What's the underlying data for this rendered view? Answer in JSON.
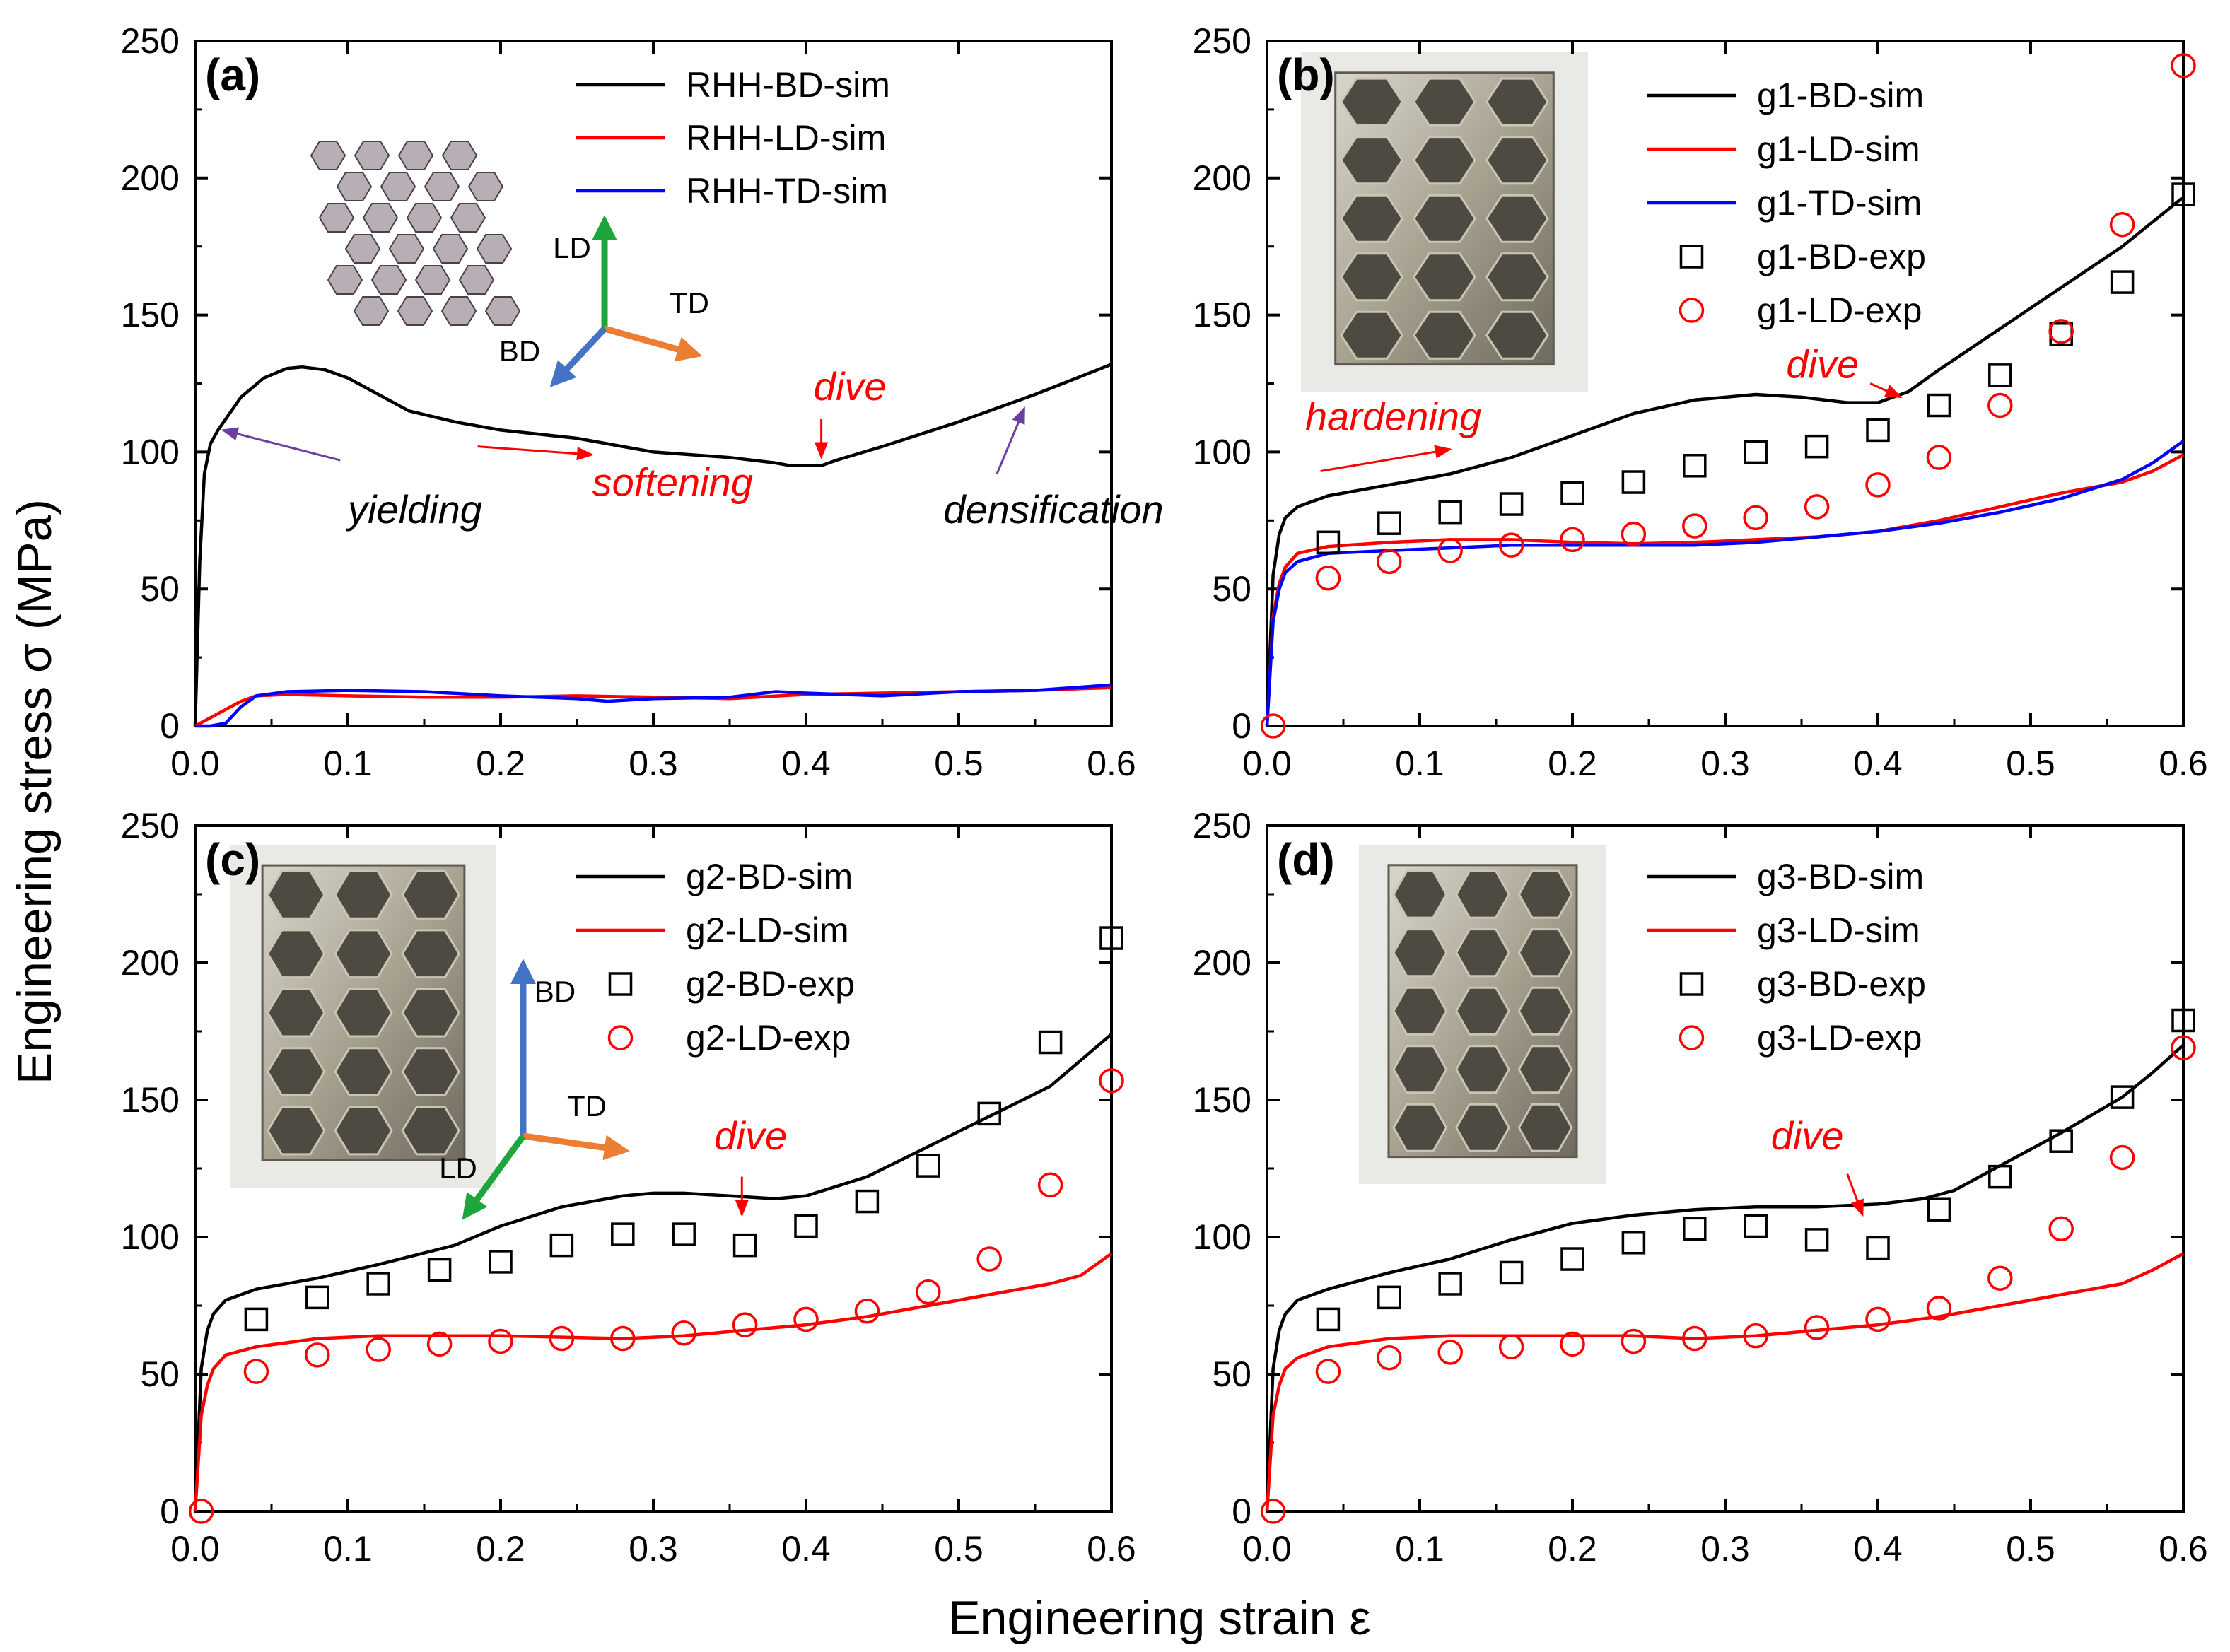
{
  "figure": {
    "ylabel": "Engineering stress σ (MPa)",
    "xlabel": "Engineering strain ε"
  },
  "chart_data": [
    {
      "type": "line",
      "panel": "(a)",
      "xlim": [
        0,
        0.6
      ],
      "ylim": [
        0,
        250
      ],
      "xticks": [
        "0.0",
        "0.1",
        "0.2",
        "0.3",
        "0.4",
        "0.5",
        "0.6"
      ],
      "yticks": [
        "0",
        "50",
        "100",
        "150",
        "200",
        "250"
      ],
      "legend_position": "top-right",
      "inset": {
        "kind": "honeycomb-sketch",
        "labels": {
          "ld": "LD",
          "td": "TD",
          "bd": "BD"
        }
      },
      "series": [
        {
          "name": "RHH-BD-sim",
          "style": "line",
          "color": "#000000",
          "x": [
            0,
            0.003,
            0.006,
            0.01,
            0.015,
            0.02,
            0.03,
            0.045,
            0.06,
            0.07,
            0.085,
            0.1,
            0.12,
            0.14,
            0.17,
            0.2,
            0.25,
            0.3,
            0.35,
            0.38,
            0.39,
            0.4,
            0.41,
            0.42,
            0.45,
            0.5,
            0.55,
            0.6
          ],
          "y": [
            0,
            60,
            92,
            103,
            108,
            112,
            120,
            127,
            130.5,
            131,
            130,
            127,
            121,
            115,
            111,
            108,
            105,
            100,
            98,
            96,
            95,
            95,
            95,
            97,
            102,
            111,
            121,
            132
          ]
        },
        {
          "name": "RHH-LD-sim",
          "style": "line",
          "color": "#ff0000",
          "x": [
            0,
            0.01,
            0.02,
            0.03,
            0.04,
            0.06,
            0.1,
            0.15,
            0.2,
            0.25,
            0.3,
            0.35,
            0.4,
            0.45,
            0.5,
            0.55,
            0.6
          ],
          "y": [
            0,
            3,
            6,
            9,
            11,
            11.5,
            11,
            10.5,
            10.5,
            11,
            10.5,
            10,
            11.5,
            12,
            12.5,
            13,
            14
          ]
        },
        {
          "name": "RHH-TD-sim",
          "style": "line",
          "color": "#0000ff",
          "x": [
            0,
            0.01,
            0.02,
            0.03,
            0.04,
            0.06,
            0.1,
            0.15,
            0.2,
            0.25,
            0.27,
            0.3,
            0.35,
            0.38,
            0.4,
            0.45,
            0.5,
            0.55,
            0.6
          ],
          "y": [
            0,
            0,
            1,
            7,
            11,
            12.5,
            13,
            12.5,
            11,
            10,
            9,
            10,
            10.5,
            12.5,
            12,
            11,
            12.5,
            13,
            15
          ]
        }
      ],
      "annotations": [
        {
          "text": "yielding",
          "color": "#000000",
          "x": 0.1,
          "y": 74
        },
        {
          "text": "softening",
          "color": "#ff0000",
          "x": 0.26,
          "y": 84
        },
        {
          "text": "dive",
          "color": "#ff0000",
          "x": 0.405,
          "y": 119
        },
        {
          "text": "densification",
          "color": "#000000",
          "x": 0.49,
          "y": 74
        }
      ]
    },
    {
      "type": "line",
      "panel": "(b)",
      "xlim": [
        0,
        0.6
      ],
      "ylim": [
        0,
        250
      ],
      "xticks": [
        "0.0",
        "0.1",
        "0.2",
        "0.3",
        "0.4",
        "0.5",
        "0.6"
      ],
      "yticks": [
        "0",
        "50",
        "100",
        "150",
        "200",
        "250"
      ],
      "legend_position": "top-right",
      "inset": {
        "kind": "photo"
      },
      "series": [
        {
          "name": "g1-BD-sim",
          "style": "line",
          "color": "#000000",
          "x": [
            0,
            0.004,
            0.008,
            0.012,
            0.02,
            0.04,
            0.08,
            0.12,
            0.16,
            0.2,
            0.24,
            0.28,
            0.32,
            0.35,
            0.38,
            0.4,
            0.42,
            0.44,
            0.48,
            0.52,
            0.56,
            0.6
          ],
          "y": [
            0,
            55,
            70,
            76,
            80,
            84,
            88,
            92,
            98,
            106,
            114,
            119,
            121,
            120,
            118,
            118,
            122,
            130,
            145,
            160,
            175,
            193
          ]
        },
        {
          "name": "g1-LD-sim",
          "style": "line",
          "color": "#ff0000",
          "x": [
            0,
            0.004,
            0.008,
            0.012,
            0.02,
            0.04,
            0.08,
            0.12,
            0.16,
            0.2,
            0.24,
            0.28,
            0.32,
            0.36,
            0.4,
            0.44,
            0.48,
            0.52,
            0.56,
            0.58,
            0.6
          ],
          "y": [
            0,
            40,
            52,
            58,
            63,
            65.5,
            67,
            68,
            68,
            67,
            66.5,
            67,
            68,
            69,
            71,
            75,
            80,
            85,
            89,
            93,
            99
          ]
        },
        {
          "name": "g1-TD-sim",
          "style": "line",
          "color": "#0000ff",
          "x": [
            0,
            0.004,
            0.008,
            0.012,
            0.02,
            0.04,
            0.08,
            0.12,
            0.16,
            0.2,
            0.24,
            0.28,
            0.32,
            0.36,
            0.4,
            0.44,
            0.48,
            0.52,
            0.56,
            0.58,
            0.6
          ],
          "y": [
            0,
            38,
            50,
            56,
            60,
            63,
            64,
            65,
            66,
            66,
            66,
            66,
            67,
            69,
            71,
            74,
            78,
            83,
            90,
            96,
            104
          ]
        },
        {
          "name": "g1-BD-exp",
          "style": "square",
          "color": "#000000",
          "x": [
            0.04,
            0.08,
            0.12,
            0.16,
            0.2,
            0.24,
            0.28,
            0.32,
            0.36,
            0.4,
            0.44,
            0.48,
            0.52,
            0.56,
            0.6
          ],
          "y": [
            67,
            74,
            78,
            81,
            85,
            89,
            95,
            100,
            102,
            108,
            117,
            128,
            143,
            162,
            194
          ]
        },
        {
          "name": "g1-LD-exp",
          "style": "circle",
          "color": "#ff0000",
          "x": [
            0.004,
            0.04,
            0.08,
            0.12,
            0.16,
            0.2,
            0.24,
            0.28,
            0.32,
            0.36,
            0.4,
            0.44,
            0.48,
            0.52,
            0.56,
            0.6
          ],
          "y": [
            0,
            54,
            60,
            64,
            66,
            68,
            70,
            73,
            76,
            80,
            88,
            98,
            117,
            144,
            183,
            241
          ]
        }
      ],
      "annotations": [
        {
          "text": "hardening",
          "color": "#ff0000",
          "x": 0.025,
          "y": 108
        },
        {
          "text": "dive",
          "color": "#ff0000",
          "x": 0.34,
          "y": 127
        }
      ]
    },
    {
      "type": "line",
      "panel": "(c)",
      "xlim": [
        0,
        0.6
      ],
      "ylim": [
        0,
        250
      ],
      "xticks": [
        "0.0",
        "0.1",
        "0.2",
        "0.3",
        "0.4",
        "0.5",
        "0.6"
      ],
      "yticks": [
        "0",
        "50",
        "100",
        "150",
        "200",
        "250"
      ],
      "legend_position": "top-right",
      "inset": {
        "kind": "photo",
        "labels": {
          "bd": "BD",
          "td": "TD",
          "ld": "LD"
        }
      },
      "series": [
        {
          "name": "g2-BD-sim",
          "style": "line",
          "color": "#000000",
          "x": [
            0,
            0.004,
            0.008,
            0.012,
            0.02,
            0.04,
            0.08,
            0.12,
            0.17,
            0.2,
            0.24,
            0.28,
            0.3,
            0.32,
            0.35,
            0.38,
            0.4,
            0.44,
            0.48,
            0.52,
            0.56,
            0.6
          ],
          "y": [
            0,
            52,
            66,
            72,
            77,
            81,
            85,
            90,
            97,
            104,
            111,
            115,
            116,
            116,
            115,
            114,
            115,
            122,
            133,
            144,
            155,
            174
          ]
        },
        {
          "name": "g2-LD-sim",
          "style": "line",
          "color": "#ff0000",
          "x": [
            0,
            0.004,
            0.008,
            0.012,
            0.02,
            0.04,
            0.08,
            0.12,
            0.16,
            0.2,
            0.24,
            0.28,
            0.32,
            0.36,
            0.4,
            0.44,
            0.48,
            0.52,
            0.56,
            0.58,
            0.6
          ],
          "y": [
            0,
            35,
            46,
            52,
            57,
            60,
            63,
            64,
            64,
            64,
            63.5,
            63,
            64,
            66,
            68,
            71,
            75,
            79,
            83,
            86,
            94
          ]
        },
        {
          "name": "g2-BD-exp",
          "style": "square",
          "color": "#000000",
          "x": [
            0.04,
            0.08,
            0.12,
            0.16,
            0.2,
            0.24,
            0.28,
            0.32,
            0.36,
            0.4,
            0.44,
            0.48,
            0.52,
            0.56,
            0.6
          ],
          "y": [
            70,
            78,
            83,
            88,
            91,
            97,
            101,
            101,
            97,
            104,
            113,
            126,
            145,
            171,
            209
          ]
        },
        {
          "name": "g2-LD-exp",
          "style": "circle",
          "color": "#ff0000",
          "x": [
            0.004,
            0.04,
            0.08,
            0.12,
            0.16,
            0.2,
            0.24,
            0.28,
            0.32,
            0.36,
            0.4,
            0.44,
            0.48,
            0.52,
            0.56,
            0.6
          ],
          "y": [
            0,
            51,
            57,
            59,
            61,
            62,
            63,
            63,
            65,
            68,
            70,
            73,
            80,
            92,
            119,
            157
          ]
        }
      ],
      "annotations": [
        {
          "text": "dive",
          "color": "#ff0000",
          "x": 0.34,
          "y": 132
        }
      ]
    },
    {
      "type": "line",
      "panel": "(d)",
      "xlim": [
        0,
        0.6
      ],
      "ylim": [
        0,
        250
      ],
      "xticks": [
        "0.0",
        "0.1",
        "0.2",
        "0.3",
        "0.4",
        "0.5",
        "0.6"
      ],
      "yticks": [
        "0",
        "50",
        "100",
        "150",
        "200",
        "250"
      ],
      "legend_position": "top-right",
      "inset": {
        "kind": "photo"
      },
      "series": [
        {
          "name": "g3-BD-sim",
          "style": "line",
          "color": "#000000",
          "x": [
            0,
            0.004,
            0.008,
            0.012,
            0.02,
            0.04,
            0.08,
            0.12,
            0.16,
            0.2,
            0.24,
            0.28,
            0.32,
            0.36,
            0.4,
            0.43,
            0.45,
            0.48,
            0.52,
            0.56,
            0.58,
            0.6
          ],
          "y": [
            0,
            52,
            66,
            72,
            77,
            81,
            87,
            92,
            99,
            105,
            108,
            110,
            111,
            111,
            112,
            114,
            117,
            126,
            138,
            151,
            160,
            170
          ]
        },
        {
          "name": "g3-LD-sim",
          "style": "line",
          "color": "#ff0000",
          "x": [
            0,
            0.004,
            0.008,
            0.012,
            0.02,
            0.04,
            0.08,
            0.12,
            0.16,
            0.2,
            0.24,
            0.28,
            0.32,
            0.36,
            0.4,
            0.44,
            0.48,
            0.52,
            0.56,
            0.58,
            0.6
          ],
          "y": [
            0,
            35,
            46,
            52,
            56,
            60,
            63,
            64,
            64,
            64,
            64,
            63,
            64,
            66,
            68,
            71,
            75,
            79,
            83,
            88,
            94
          ]
        },
        {
          "name": "g3-BD-exp",
          "style": "square",
          "color": "#000000",
          "x": [
            0.04,
            0.08,
            0.12,
            0.16,
            0.2,
            0.24,
            0.28,
            0.32,
            0.36,
            0.4,
            0.44,
            0.48,
            0.52,
            0.56,
            0.6
          ],
          "y": [
            70,
            78,
            83,
            87,
            92,
            98,
            103,
            104,
            99,
            96,
            110,
            122,
            135,
            151,
            179
          ]
        },
        {
          "name": "g3-LD-exp",
          "style": "circle",
          "color": "#ff0000",
          "x": [
            0.004,
            0.04,
            0.08,
            0.12,
            0.16,
            0.2,
            0.24,
            0.28,
            0.32,
            0.36,
            0.4,
            0.44,
            0.48,
            0.52,
            0.56,
            0.6
          ],
          "y": [
            0,
            51,
            56,
            58,
            60,
            61,
            62,
            63,
            64,
            67,
            70,
            74,
            85,
            103,
            129,
            169
          ]
        }
      ],
      "annotations": [
        {
          "text": "dive",
          "color": "#ff0000",
          "x": 0.33,
          "y": 132
        }
      ]
    }
  ]
}
